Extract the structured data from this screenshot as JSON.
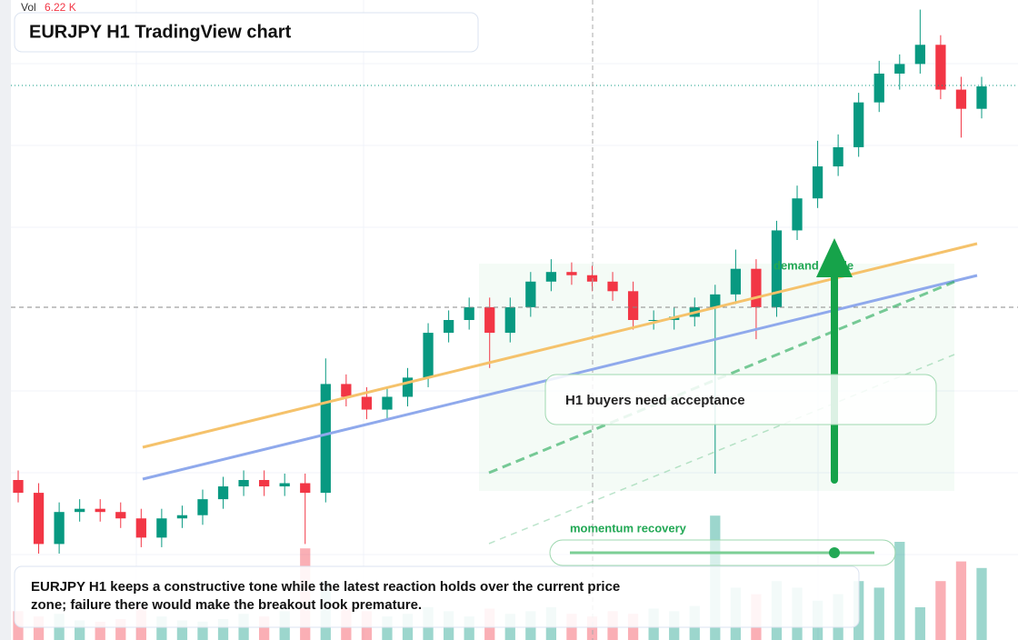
{
  "chart_data": {
    "type": "candlestick",
    "title": "EURJPY H1 TradingView chart",
    "volume_label": "Vol",
    "volume_value": "6.22 K",
    "annotations": [
      "demand guide",
      "H1 buyers need acceptance",
      "momentum recovery"
    ],
    "caption": "EURJPY H1 keeps a constructive tone while the latest reaction holds over the current price zone; failure there would make the breakout look premature.",
    "up_color": "#089981",
    "down_color": "#f23645",
    "ylim": [
      0,
      100
    ],
    "volume_lim": [
      0,
      100
    ],
    "open": [
      25,
      23,
      15,
      20,
      20.5,
      20,
      19,
      16,
      19,
      19.5,
      22,
      24,
      25,
      24,
      24.5,
      23,
      40,
      38,
      36,
      38,
      41,
      48,
      50,
      52,
      48,
      52,
      56,
      57.5,
      57,
      56,
      54.5,
      50,
      50,
      50.5,
      52,
      54,
      58,
      52,
      64,
      69,
      74,
      77,
      84,
      88.5,
      90,
      93,
      86,
      83
    ],
    "high": [
      26.5,
      24.5,
      21.5,
      22,
      22,
      21.5,
      20.5,
      20.5,
      21,
      23.5,
      25.5,
      26.5,
      26.5,
      26,
      26,
      44,
      41.5,
      39.5,
      39.5,
      42.5,
      49.5,
      51.5,
      53.5,
      53.5,
      53.5,
      57.5,
      59.5,
      59,
      58.5,
      57.5,
      56,
      51.5,
      52,
      53.5,
      55.5,
      61,
      59.5,
      65.5,
      71,
      78,
      79,
      85.5,
      90.5,
      91.5,
      98.5,
      94.5,
      88,
      88
    ],
    "low": [
      21.5,
      13.5,
      13.5,
      18.5,
      18.5,
      17.5,
      14.5,
      14.5,
      17.5,
      18,
      20.5,
      22.5,
      22.5,
      22.5,
      15,
      21.5,
      36.5,
      34.5,
      34.5,
      36.5,
      39.5,
      46.5,
      48.5,
      42.5,
      46.5,
      50.5,
      54.5,
      55.5,
      54.5,
      53,
      48.5,
      48.5,
      48.5,
      49,
      26,
      52.5,
      47,
      50.5,
      62.5,
      67.5,
      72.5,
      75.5,
      82.5,
      86,
      88.5,
      84.5,
      78.5,
      81.5
    ],
    "close": [
      23,
      15,
      20,
      20.5,
      20,
      19,
      16,
      19,
      19.5,
      22,
      24,
      25,
      24,
      24.5,
      23,
      40,
      38,
      36,
      38,
      41,
      48,
      50,
      52,
      48,
      52,
      56,
      57.5,
      57,
      56,
      54.5,
      50,
      50,
      50.5,
      52,
      54,
      58,
      52,
      64,
      69,
      74,
      77,
      84,
      88.5,
      90,
      93,
      86,
      83,
      86.5
    ],
    "volume": [
      22,
      18,
      20,
      15,
      14,
      16,
      25,
      18,
      15,
      14,
      16,
      20,
      18,
      22,
      70,
      45,
      25,
      22,
      18,
      20,
      25,
      22,
      18,
      24,
      20,
      22,
      25,
      20,
      18,
      22,
      20,
      24,
      22,
      26,
      95,
      40,
      35,
      45,
      40,
      30,
      35,
      45,
      40,
      75,
      25,
      45,
      60,
      55
    ]
  }
}
